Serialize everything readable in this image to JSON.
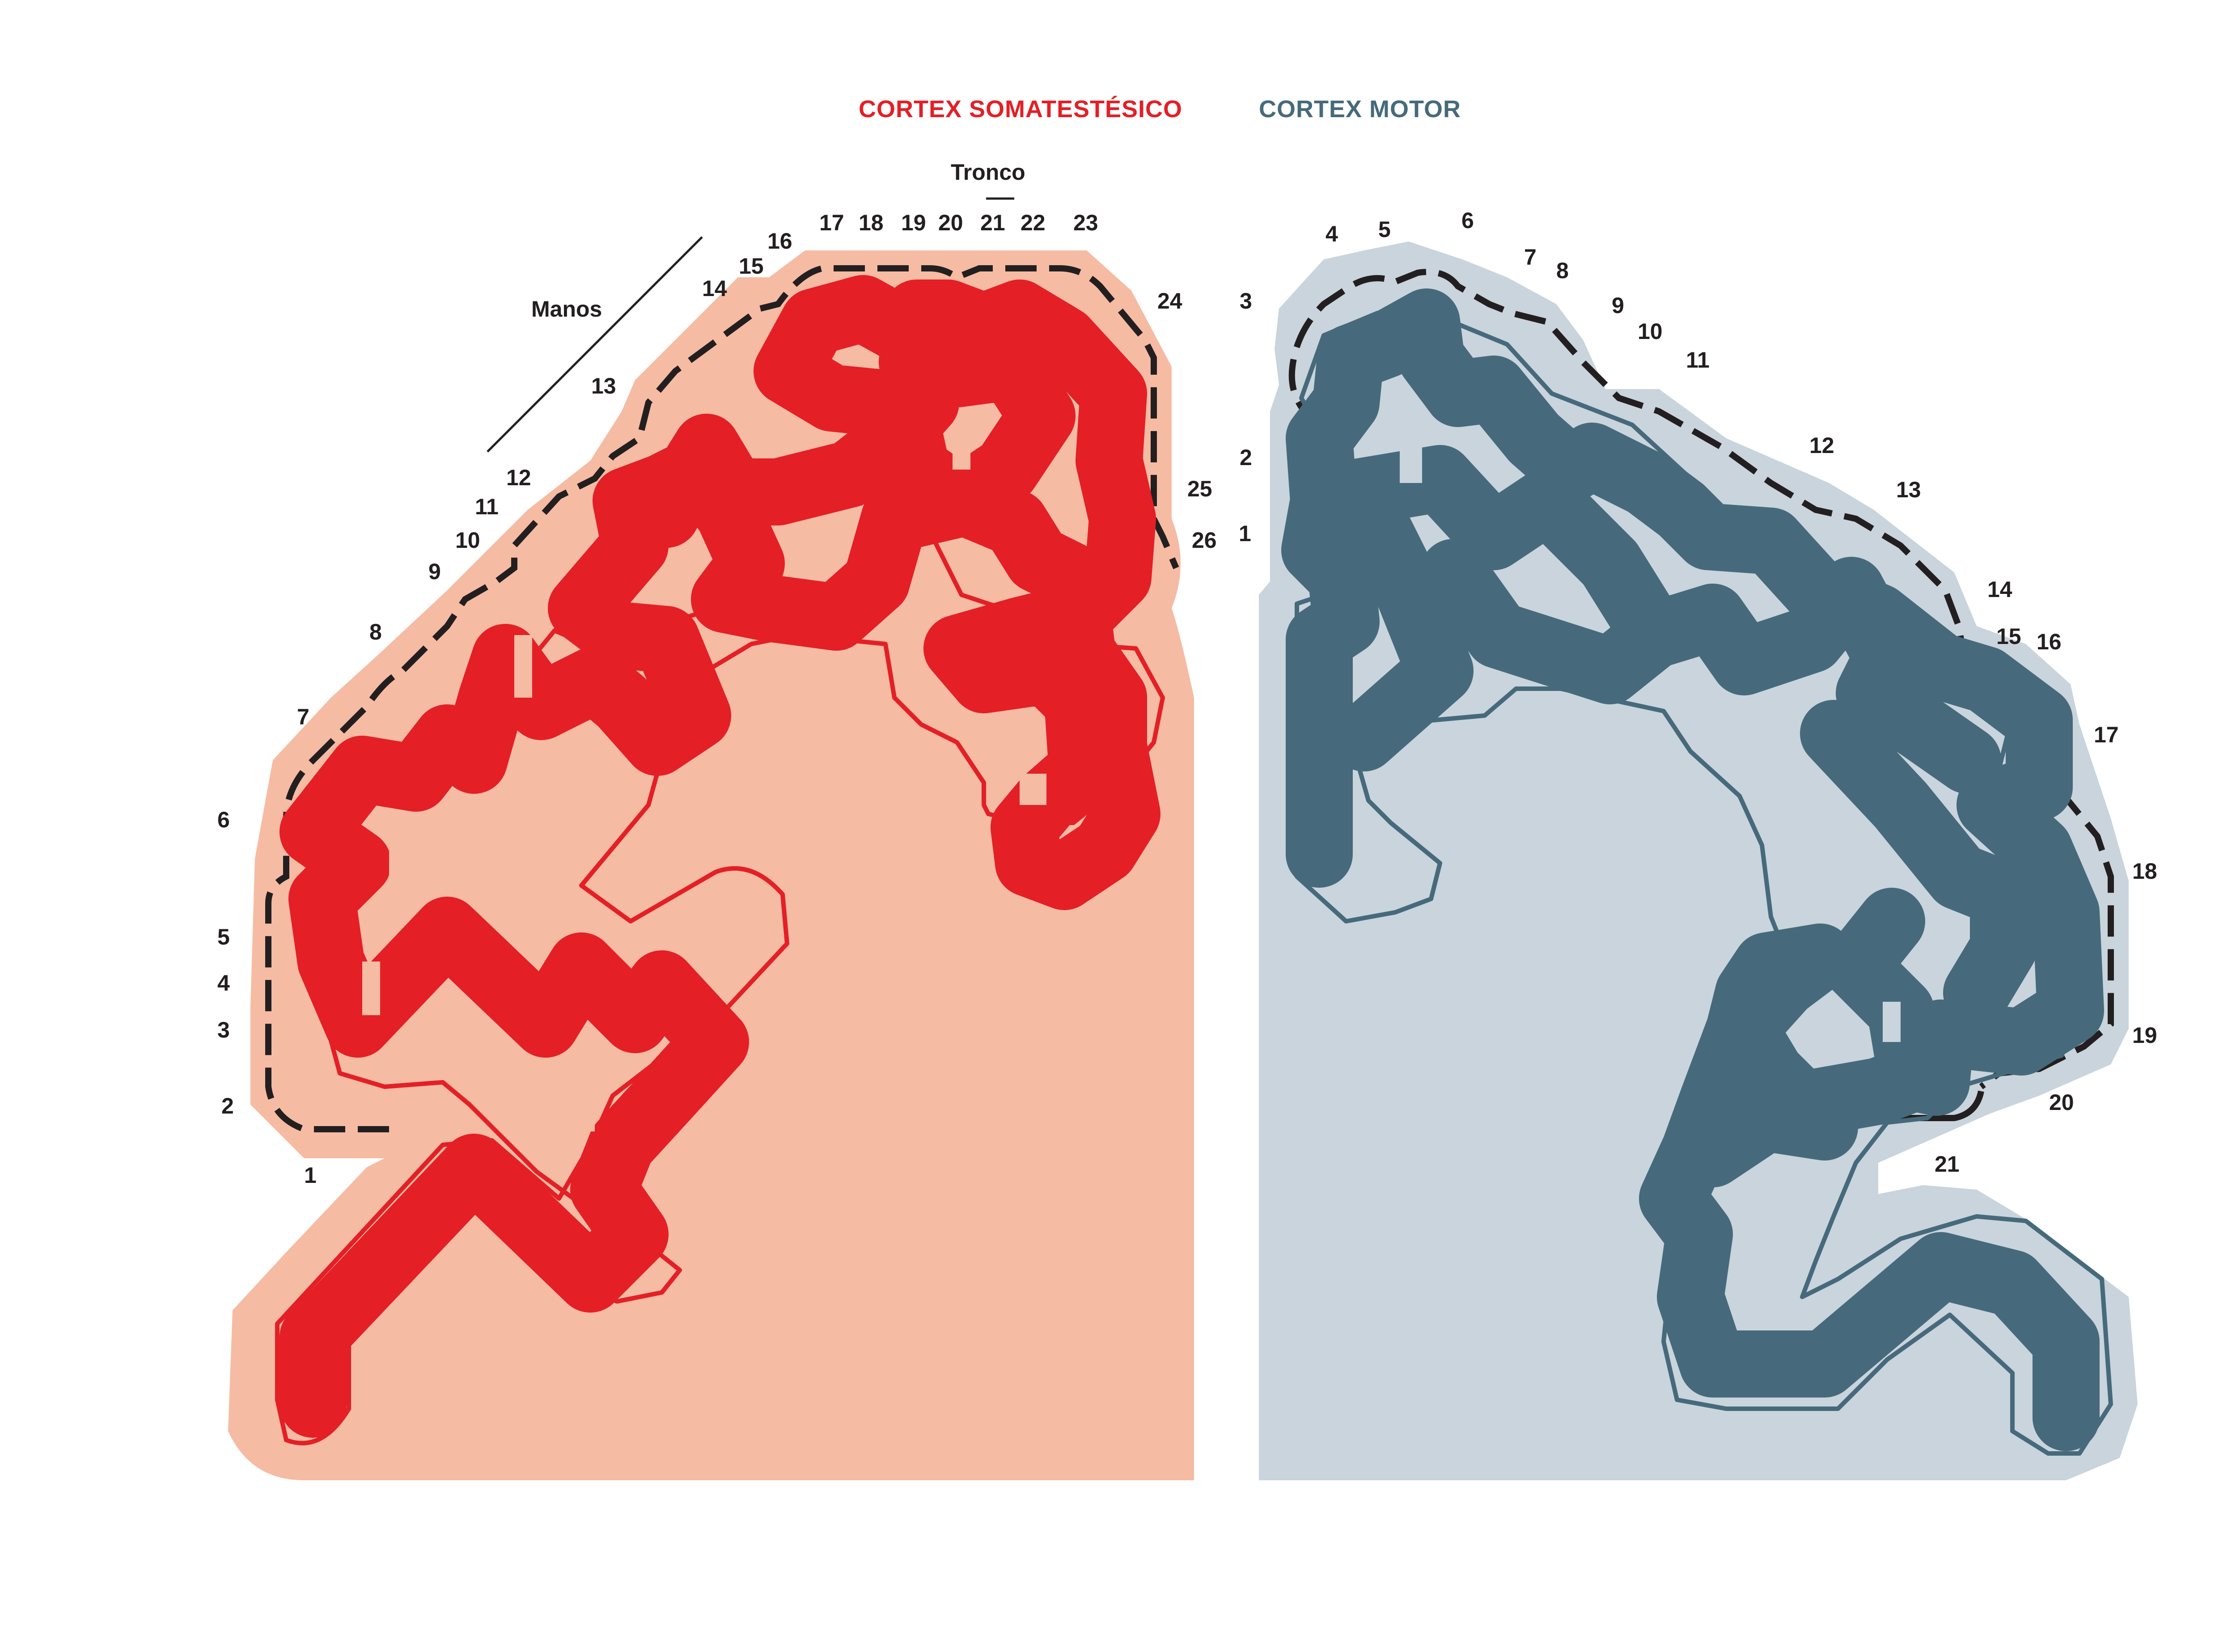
{
  "titles": {
    "sensory": "CORTEX SOMATESTÉSICO",
    "motor": "CORTEX MOTOR"
  },
  "colors": {
    "sensory_main": "#e41f26",
    "sensory_bg": "#f6bba3",
    "motor_main": "#466a7c",
    "motor_bg": "#c9d4dc",
    "ink": "#231f20"
  },
  "sensory": {
    "annotations": {
      "manos": "Manos",
      "tronco": "Tronco"
    },
    "numbers": [
      "1",
      "2",
      "3",
      "4",
      "5",
      "6",
      "7",
      "8",
      "9",
      "10",
      "11",
      "12",
      "13",
      "14",
      "15",
      "16",
      "17",
      "18",
      "19",
      "20",
      "21",
      "22",
      "23",
      "24",
      "25",
      "26"
    ]
  },
  "motor": {
    "numbers": [
      "1",
      "2",
      "3",
      "4",
      "5",
      "6",
      "7",
      "8",
      "9",
      "10",
      "11",
      "12",
      "13",
      "14",
      "15",
      "16",
      "17",
      "18",
      "19",
      "20",
      "21"
    ]
  }
}
